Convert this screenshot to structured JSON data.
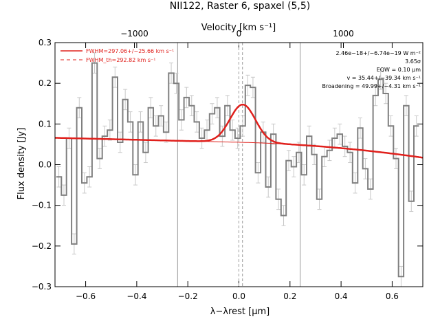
{
  "chart_data": {
    "type": "line",
    "title": "NII122, Raster 6, spaxel (5,5)",
    "xlabel": "λ−λrest [μm]",
    "ylabel": "Flux density [Jy]",
    "top_xlabel": "Velocity [km s⁻¹]",
    "xlim": [
      -0.72,
      0.72
    ],
    "ylim": [
      -0.3,
      0.3
    ],
    "top_xlim": [
      -1760,
      1760
    ],
    "xticks": [
      -0.6,
      -0.4,
      -0.2,
      0.0,
      0.2,
      0.4,
      0.6
    ],
    "xtick_labels": [
      "−0.6",
      "−0.4",
      "−0.2",
      "0.0",
      "0.2",
      "0.4",
      "0.6"
    ],
    "yticks": [
      -0.3,
      -0.2,
      -0.1,
      0.0,
      0.1,
      0.2,
      0.3
    ],
    "ytick_labels": [
      "−0.3",
      "−0.2",
      "−0.1",
      "0.0",
      "0.1",
      "0.2",
      "0.3"
    ],
    "top_xticks": [
      -1000,
      0,
      1000
    ],
    "top_xtick_labels": [
      "−1000",
      "0",
      "1000"
    ],
    "vlines_solid": [
      -0.24,
      0.24
    ],
    "vlines_dashed": [
      0.0,
      0.014
    ],
    "spectrum": {
      "x": [
        -0.705,
        -0.685,
        -0.665,
        -0.645,
        -0.625,
        -0.605,
        -0.585,
        -0.565,
        -0.545,
        -0.525,
        -0.505,
        -0.485,
        -0.465,
        -0.445,
        -0.425,
        -0.405,
        -0.385,
        -0.365,
        -0.345,
        -0.325,
        -0.305,
        -0.285,
        -0.265,
        -0.245,
        -0.225,
        -0.205,
        -0.185,
        -0.165,
        -0.145,
        -0.125,
        -0.105,
        -0.085,
        -0.065,
        -0.045,
        -0.025,
        -0.005,
        0.015,
        0.035,
        0.055,
        0.075,
        0.095,
        0.115,
        0.135,
        0.155,
        0.175,
        0.195,
        0.215,
        0.235,
        0.255,
        0.275,
        0.295,
        0.315,
        0.335,
        0.355,
        0.375,
        0.395,
        0.415,
        0.435,
        0.455,
        0.475,
        0.495,
        0.515,
        0.535,
        0.555,
        0.575,
        0.595,
        0.615,
        0.635,
        0.655,
        0.675,
        0.695
      ],
      "y": [
        -0.03,
        -0.075,
        0.065,
        -0.195,
        0.14,
        -0.045,
        -0.03,
        0.25,
        0.015,
        0.07,
        0.085,
        0.215,
        0.055,
        0.16,
        0.105,
        -0.025,
        0.105,
        0.03,
        0.14,
        0.095,
        0.12,
        0.08,
        0.225,
        0.2,
        0.11,
        0.165,
        0.145,
        0.105,
        0.065,
        0.085,
        0.125,
        0.14,
        0.07,
        0.145,
        0.085,
        0.065,
        0.095,
        0.195,
        0.19,
        -0.02,
        0.08,
        -0.055,
        0.075,
        -0.085,
        -0.125,
        0.01,
        -0.005,
        0.03,
        -0.025,
        0.07,
        0.025,
        -0.085,
        0.02,
        0.035,
        0.065,
        0.075,
        0.045,
        0.03,
        -0.045,
        0.09,
        -0.01,
        -0.06,
        0.17,
        0.21,
        0.175,
        0.095,
        0.015,
        -0.275,
        0.145,
        -0.09,
        0.095
      ],
      "err": 0.025,
      "color": "#7f7f7f"
    },
    "fit": {
      "continuum_at_xmin": 0.066,
      "continuum_slope": -0.0152,
      "continuum_curvature": -0.052,
      "gaussian_center": 0.015,
      "gaussian_sigma": 0.05,
      "gaussian_amplitude": 0.093,
      "color": "#e0201c"
    },
    "legend": {
      "placement": "top-left",
      "entries": [
        {
          "label": "FWHM=297.06+/−25.66 km s⁻¹",
          "style": "solid"
        },
        {
          "label": "FWHM_th=292.82 km s⁻¹",
          "style": "dashed"
        }
      ]
    },
    "annotations": [
      "2.46e−18+/−6.74e−19 W m⁻²",
      "3.65σ",
      "EQW = 0.10 μm",
      "v = 35.44+/−39.34 km s⁻¹",
      "Broadening = 49.99+/−4.31 km s⁻¹"
    ]
  }
}
